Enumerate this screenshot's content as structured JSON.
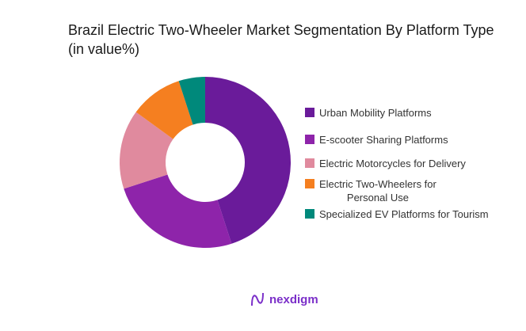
{
  "chart_data": {
    "type": "pie",
    "donut": true,
    "title": "Brazil Electric Two-Wheeler Market Segmentation By Platform Type (in value%)",
    "categories": [
      "Urban Mobility Platforms",
      "E-scooter Sharing Platforms",
      "Electric Motorcycles for Delivery",
      "Electric Two-Wheelers for Personal Use",
      "Specialized EV Platforms for Tourism"
    ],
    "values": [
      45,
      25,
      15,
      10,
      5
    ],
    "colors": [
      "#6a1b9a",
      "#8e24aa",
      "#e08a9e",
      "#f57f20",
      "#00897b"
    ],
    "legend_position": "right"
  },
  "branding": {
    "logo_text": "nexdigm"
  }
}
